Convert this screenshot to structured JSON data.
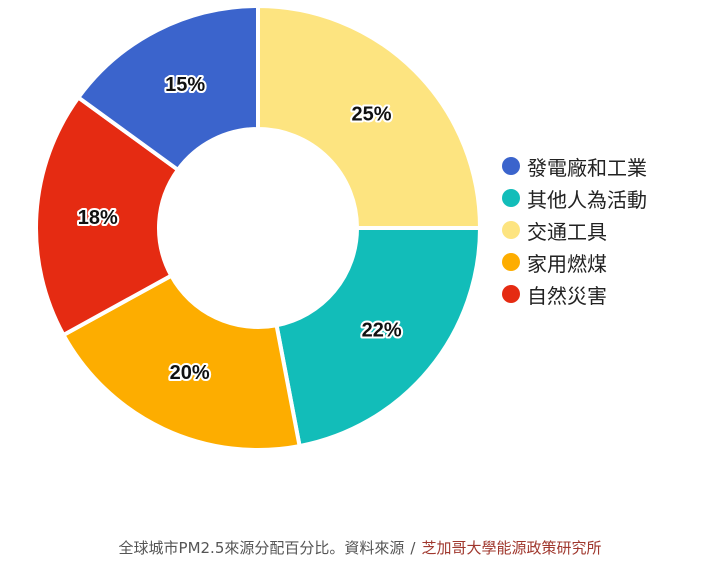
{
  "chart_data": {
    "type": "pie",
    "donut": true,
    "categories": [
      "發電廠和工業",
      "其他人為活動",
      "交通工具",
      "家用燃煤",
      "自然災害"
    ],
    "values": [
      15,
      22,
      25,
      20,
      18
    ],
    "value_labels": [
      "15%",
      "22%",
      "25%",
      "20%",
      "18%"
    ],
    "colors": [
      "#3b64cc",
      "#12bdb9",
      "#fde480",
      "#fdad00",
      "#e52b12"
    ],
    "slice_order_clockwise_from_top": [
      "交通工具",
      "其他人為活動",
      "家用燃煤",
      "自然災害",
      "發電廠和工業"
    ],
    "legend_position": "right"
  },
  "caption": {
    "text": "全球城市PM2.5來源分配百分比。資料來源",
    "separator": "/",
    "source": "芝加哥大學能源政策研究所"
  }
}
